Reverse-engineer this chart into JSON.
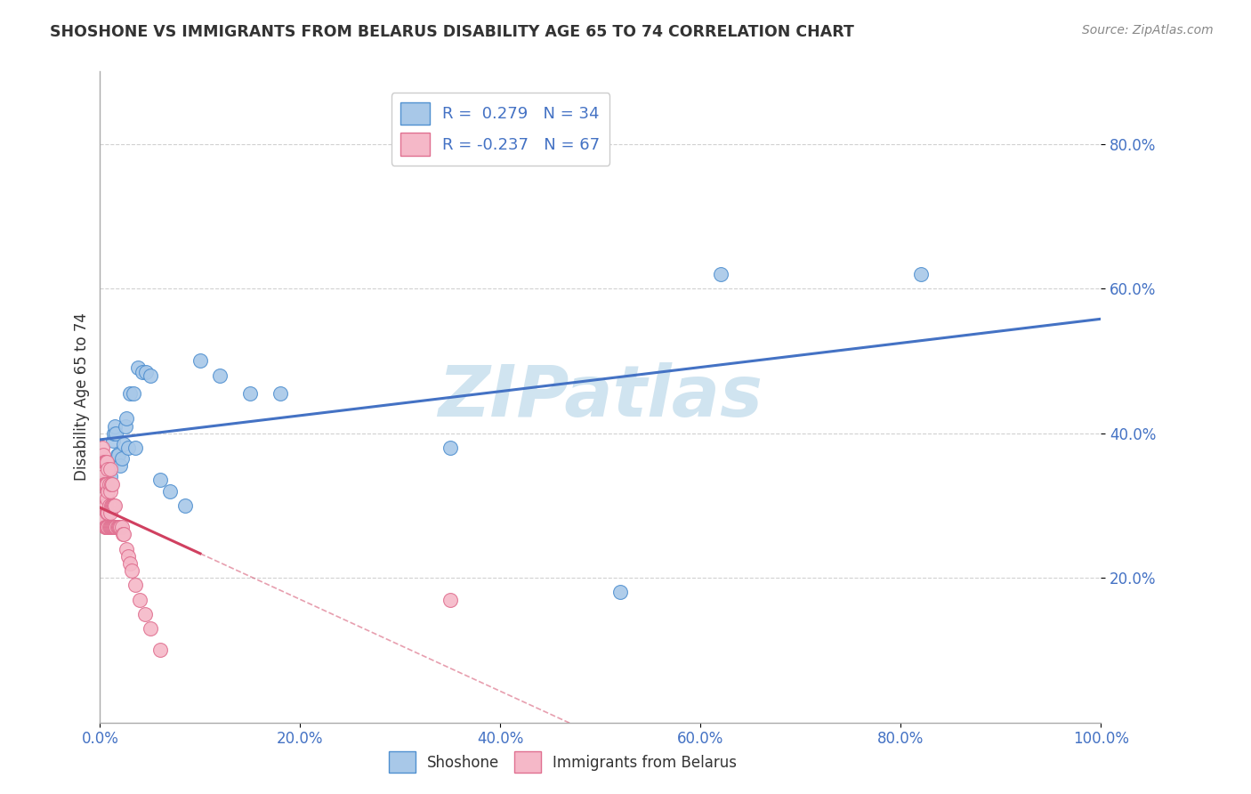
{
  "title": "SHOSHONE VS IMMIGRANTS FROM BELARUS DISABILITY AGE 65 TO 74 CORRELATION CHART",
  "source": "Source: ZipAtlas.com",
  "ylabel": "Disability Age 65 to 74",
  "shoshone_R": 0.279,
  "shoshone_N": 34,
  "belarus_R": -0.237,
  "belarus_N": 67,
  "shoshone_color": "#a8c8e8",
  "belarus_color": "#f5b8c8",
  "shoshone_edge_color": "#5090d0",
  "belarus_edge_color": "#e07090",
  "shoshone_line_color": "#4472c4",
  "belarus_line_color": "#d04060",
  "watermark": "ZIPatlas",
  "watermark_color": "#d0e4f0",
  "background_color": "#ffffff",
  "xlim": [
    0.0,
    1.0
  ],
  "ylim": [
    0.0,
    0.9
  ],
  "x_ticks": [
    0.0,
    0.2,
    0.4,
    0.6,
    0.8,
    1.0
  ],
  "x_tick_labels": [
    "0.0%",
    "20.0%",
    "40.0%",
    "60.0%",
    "80.0%",
    "100.0%"
  ],
  "y_ticks": [
    0.2,
    0.4,
    0.6,
    0.8
  ],
  "y_tick_labels": [
    "20.0%",
    "40.0%",
    "60.0%",
    "80.0%"
  ],
  "shoshone_x": [
    0.005,
    0.007,
    0.01,
    0.012,
    0.013,
    0.014,
    0.015,
    0.016,
    0.017,
    0.018,
    0.02,
    0.022,
    0.024,
    0.025,
    0.026,
    0.028,
    0.03,
    0.033,
    0.035,
    0.038,
    0.042,
    0.046,
    0.05,
    0.06,
    0.07,
    0.085,
    0.1,
    0.12,
    0.15,
    0.18,
    0.35,
    0.52,
    0.62,
    0.82
  ],
  "shoshone_y": [
    0.335,
    0.335,
    0.34,
    0.36,
    0.39,
    0.4,
    0.41,
    0.4,
    0.37,
    0.37,
    0.355,
    0.365,
    0.385,
    0.41,
    0.42,
    0.38,
    0.455,
    0.455,
    0.38,
    0.49,
    0.485,
    0.485,
    0.48,
    0.335,
    0.32,
    0.3,
    0.5,
    0.48,
    0.455,
    0.455,
    0.38,
    0.18,
    0.62,
    0.62
  ],
  "belarus_x": [
    0.001,
    0.001,
    0.002,
    0.002,
    0.002,
    0.003,
    0.003,
    0.003,
    0.003,
    0.004,
    0.004,
    0.004,
    0.004,
    0.005,
    0.005,
    0.005,
    0.005,
    0.006,
    0.006,
    0.006,
    0.006,
    0.007,
    0.007,
    0.007,
    0.007,
    0.007,
    0.008,
    0.008,
    0.008,
    0.008,
    0.009,
    0.009,
    0.009,
    0.01,
    0.01,
    0.01,
    0.01,
    0.011,
    0.011,
    0.011,
    0.012,
    0.012,
    0.012,
    0.013,
    0.013,
    0.014,
    0.014,
    0.015,
    0.015,
    0.016,
    0.017,
    0.018,
    0.019,
    0.02,
    0.022,
    0.023,
    0.024,
    0.026,
    0.028,
    0.03,
    0.032,
    0.035,
    0.04,
    0.045,
    0.05,
    0.06,
    0.35
  ],
  "belarus_y": [
    0.3,
    0.35,
    0.3,
    0.33,
    0.38,
    0.28,
    0.31,
    0.34,
    0.37,
    0.28,
    0.3,
    0.33,
    0.36,
    0.27,
    0.3,
    0.33,
    0.36,
    0.27,
    0.3,
    0.33,
    0.36,
    0.27,
    0.29,
    0.31,
    0.33,
    0.36,
    0.27,
    0.29,
    0.32,
    0.35,
    0.27,
    0.3,
    0.33,
    0.27,
    0.29,
    0.32,
    0.35,
    0.27,
    0.3,
    0.33,
    0.27,
    0.3,
    0.33,
    0.27,
    0.3,
    0.27,
    0.3,
    0.27,
    0.3,
    0.27,
    0.27,
    0.27,
    0.27,
    0.27,
    0.27,
    0.26,
    0.26,
    0.24,
    0.23,
    0.22,
    0.21,
    0.19,
    0.17,
    0.15,
    0.13,
    0.1,
    0.17
  ]
}
